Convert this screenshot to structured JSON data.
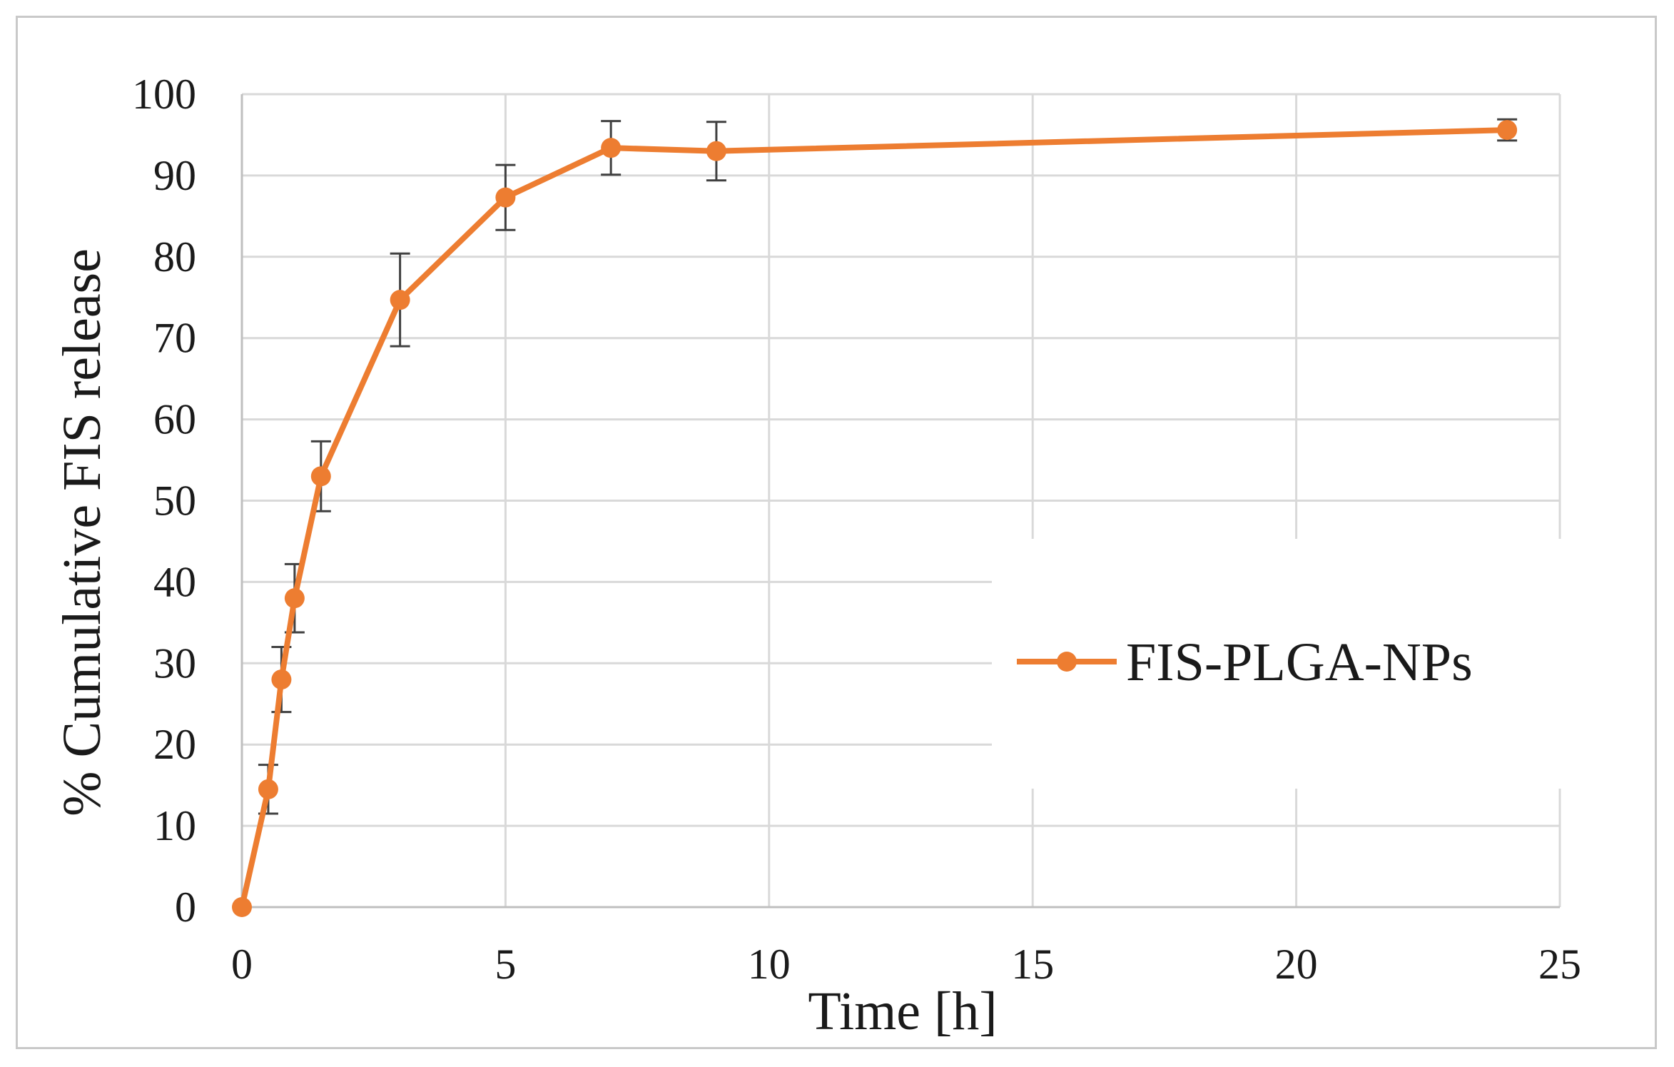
{
  "chart_data": {
    "type": "line",
    "title": "",
    "xlabel": "Time [h]",
    "ylabel": "% Cumulative FIS release",
    "xlim": [
      0,
      25
    ],
    "ylim": [
      0,
      100
    ],
    "x_ticks": [
      0,
      5,
      10,
      15,
      20,
      25
    ],
    "y_ticks": [
      0,
      10,
      20,
      30,
      40,
      50,
      60,
      70,
      80,
      90,
      100
    ],
    "grid": true,
    "legend_position": "right",
    "series": [
      {
        "name": "FIS-PLGA-NPs",
        "color": "#ED7D31",
        "marker": "circle",
        "x": [
          0,
          0.5,
          0.75,
          1,
          1.5,
          3,
          5,
          7,
          9,
          24
        ],
        "y": [
          0,
          14.5,
          28,
          38,
          53,
          74.7,
          87.3,
          93.4,
          93,
          95.6
        ],
        "error": [
          0,
          3,
          4,
          4.2,
          4.3,
          5.7,
          4,
          3.3,
          3.6,
          1.3
        ]
      }
    ]
  },
  "colors": {
    "grid": "#d9d9d9",
    "axis": "#bfbfbf",
    "error_bar": "#404040"
  }
}
